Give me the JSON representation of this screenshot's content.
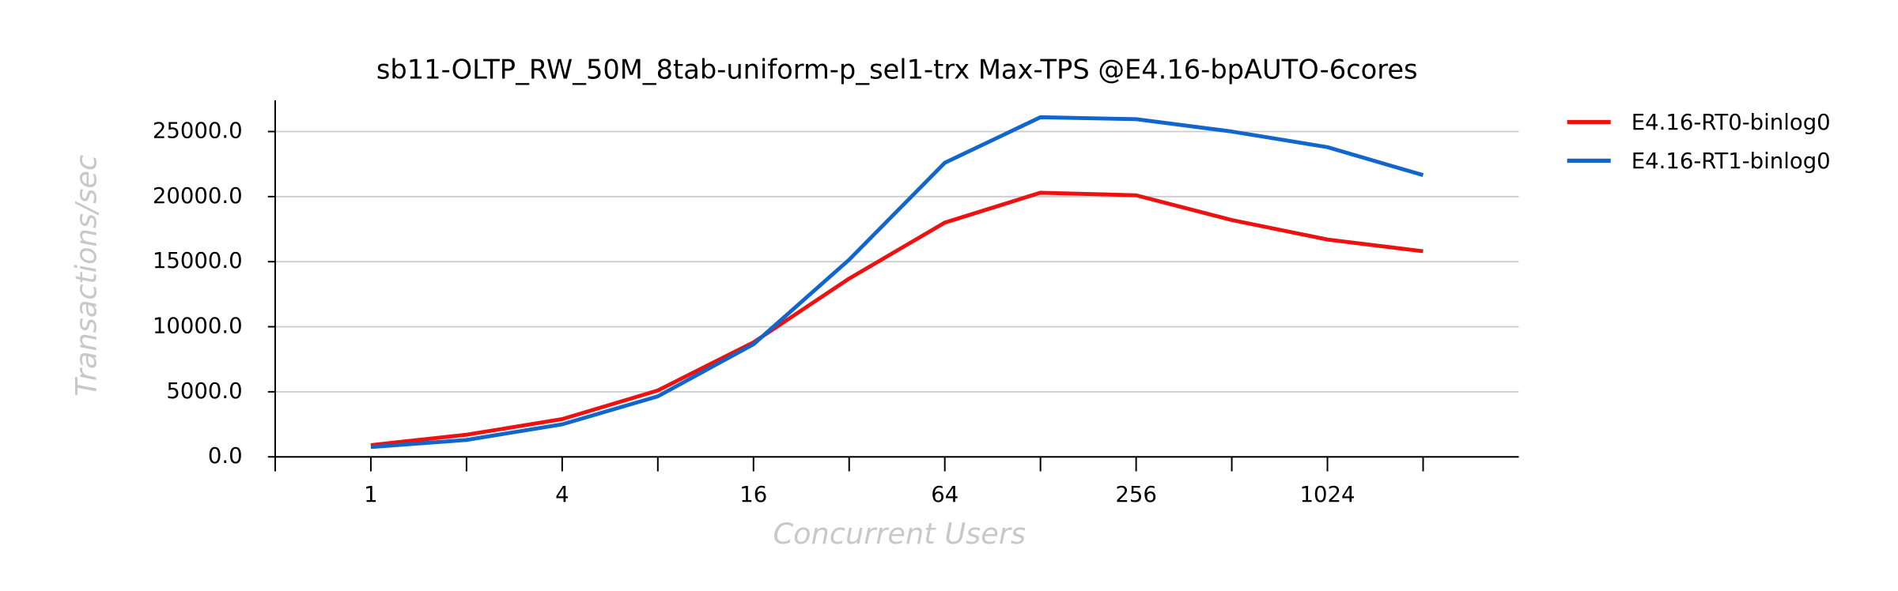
{
  "chart_data": {
    "type": "line",
    "title": "sb11-OLTP_RW_50M_8tab-uniform-p_sel1-trx Max-TPS @E4.16-bpAUTO-6cores",
    "x_label": "Concurrent Users",
    "y_label": "Transactions/sec",
    "categories": [
      "1",
      null,
      "4",
      null,
      "16",
      null,
      "64",
      null,
      "256",
      null,
      "1024",
      null
    ],
    "series": [
      {
        "name": "E4.16-RT0-binlog0",
        "color": "#ee1111",
        "values": [
          900,
          1700,
          2900,
          5100,
          8800,
          13700,
          18000,
          20300,
          20100,
          18200,
          16700,
          15800
        ]
      },
      {
        "name": "E4.16-RT1-binlog0",
        "color": "#1166cc",
        "values": [
          750,
          1300,
          2500,
          4650,
          8650,
          15150,
          22600,
          26100,
          25950,
          25000,
          23800,
          21650
        ]
      }
    ],
    "ylim": [
      0,
      27400
    ],
    "yticks": [
      {
        "value": 0,
        "label": "0.0"
      },
      {
        "value": 5000,
        "label": "5000.0"
      },
      {
        "value": 10000,
        "label": "10000.0"
      },
      {
        "value": 15000,
        "label": "15000.0"
      },
      {
        "value": 20000,
        "label": "20000.0"
      },
      {
        "value": 25000,
        "label": "25000.0"
      }
    ],
    "grid": true
  }
}
